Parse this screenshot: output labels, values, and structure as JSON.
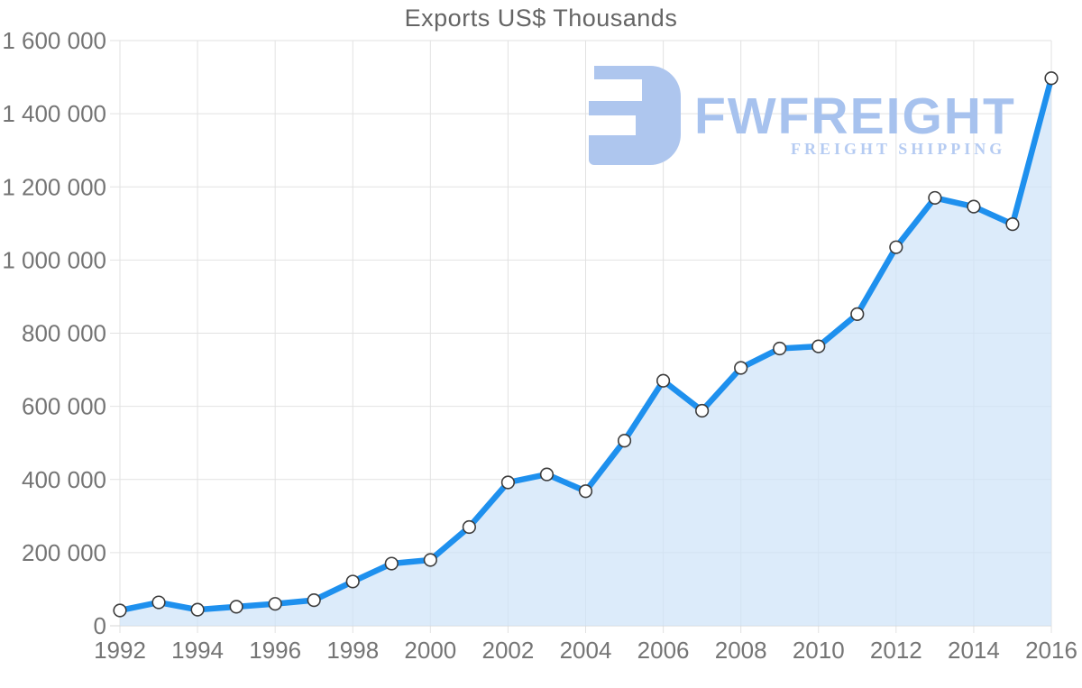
{
  "chart_data": {
    "type": "line",
    "area_fill": true,
    "marker": "circle",
    "grid": true,
    "legend": "none",
    "title": "Exports US$ Thousands",
    "xlabel": "",
    "ylabel": "",
    "x": [
      1992,
      1993,
      1994,
      1995,
      1996,
      1997,
      1998,
      1999,
      2000,
      2001,
      2002,
      2003,
      2004,
      2005,
      2006,
      2007,
      2008,
      2009,
      2010,
      2011,
      2012,
      2013,
      2014,
      2015,
      2016
    ],
    "series": [
      {
        "name": "Exports US$ Thousands",
        "values": [
          42000,
          64000,
          44000,
          52000,
          60000,
          70000,
          121000,
          170000,
          180000,
          270000,
          392000,
          414000,
          368000,
          506000,
          670000,
          588000,
          705000,
          758000,
          764000,
          852000,
          1035000,
          1170000,
          1146000,
          1098000,
          1497000
        ]
      }
    ],
    "xlim": [
      1992,
      2016
    ],
    "ylim": [
      0,
      1600000
    ],
    "xtick_values": [
      1992,
      1994,
      1996,
      1998,
      2000,
      2002,
      2004,
      2006,
      2008,
      2010,
      2012,
      2014,
      2016
    ],
    "xtick_labels": [
      "1992",
      "1994",
      "1996",
      "1998",
      "2000",
      "2002",
      "2004",
      "2006",
      "2008",
      "2010",
      "2012",
      "2014",
      "2016"
    ],
    "ytick_values": [
      0,
      200000,
      400000,
      600000,
      800000,
      1000000,
      1200000,
      1400000,
      1600000
    ],
    "ytick_labels": [
      "0",
      "200 000",
      "400 000",
      "600 000",
      "800 000",
      "1 000 000",
      "1 200 000",
      "1 400 000",
      "1 600 000"
    ]
  },
  "colors": {
    "line": "#1e90ee",
    "area_fill": "#cfe3f8",
    "area_opacity": "0.72",
    "grid": "#e2e2e2",
    "axis_line": "#d5d5d5",
    "tick_text": "#757575",
    "title_text": "#656565",
    "marker_fill": "#ffffff",
    "marker_stroke": "#3d3d3d",
    "watermark_icon": "#aec6ee",
    "watermark_brand": "#a7c2ee",
    "watermark_tagline": "#b5cbf2"
  },
  "watermark": {
    "brand": "FWFREIGHT",
    "tagline": "FREIGHT SHIPPING"
  }
}
